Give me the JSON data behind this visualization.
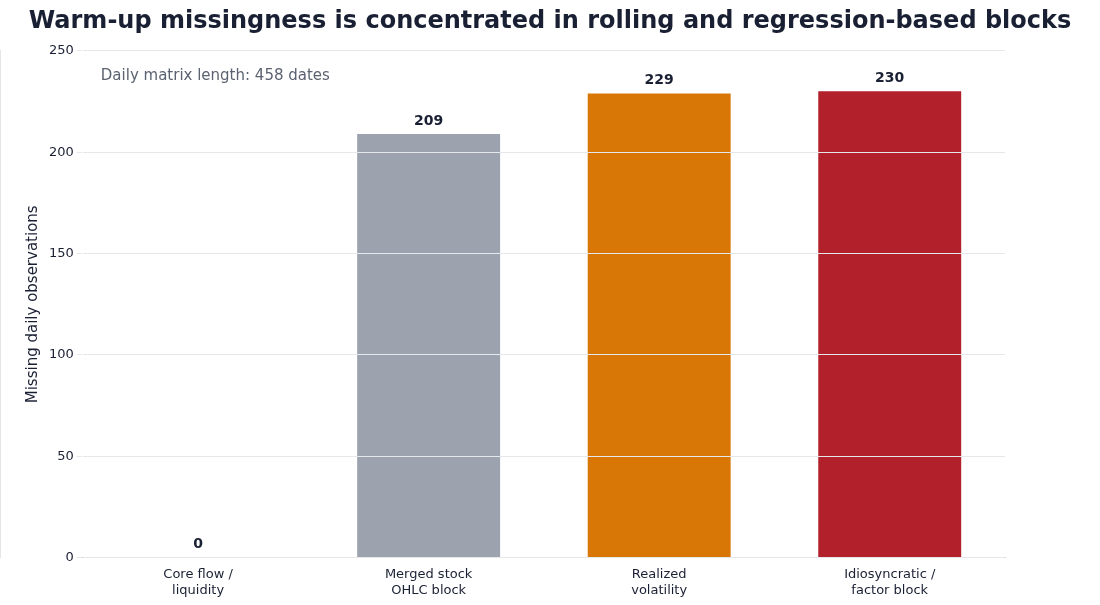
{
  "chart_data": {
    "type": "bar",
    "title": "Warm-up missingness is concentrated in rolling and regression-based blocks",
    "ylabel": "Missing daily observations",
    "categories": [
      "Core flow /\nliquidity",
      "Merged stock\nOHLC block",
      "Realized\nvolatility",
      "Idiosyncratic /\nfactor block"
    ],
    "values": [
      0,
      209,
      229,
      230
    ],
    "colors": [
      "#9ca3af",
      "#9ca3af",
      "#d97706",
      "#b2202b"
    ],
    "ylim": [
      0,
      250
    ],
    "yticks": [
      0,
      50,
      100,
      150,
      200,
      250
    ],
    "grid": "y",
    "data_labels": true,
    "legend": false,
    "annotations": [
      "Daily matrix length: 458 dates"
    ]
  }
}
